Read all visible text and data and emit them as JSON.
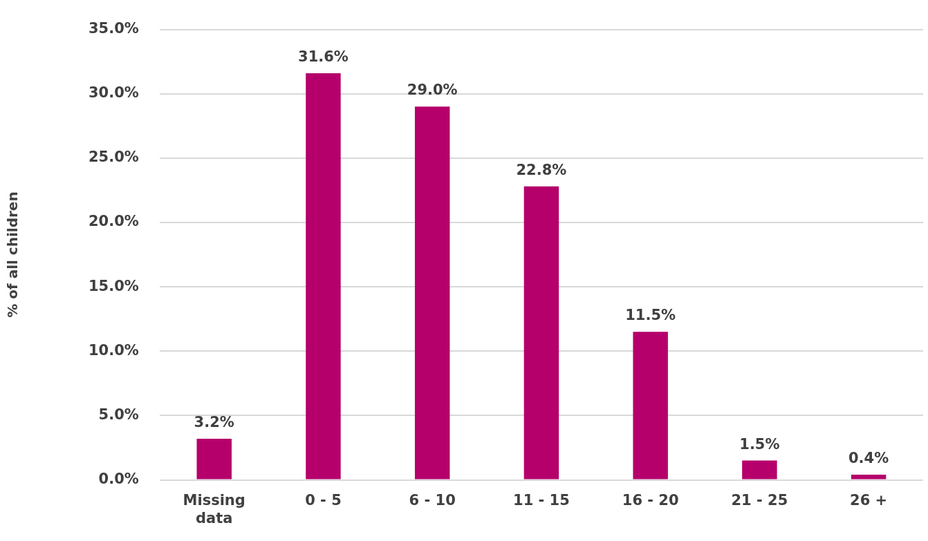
{
  "chart_data": {
    "type": "bar",
    "ylabel": "% of all children",
    "categories": [
      "Missing data",
      "0 - 5",
      "6 - 10",
      "11 - 15",
      "16 - 20",
      "21 - 25",
      "26 +"
    ],
    "values": [
      3.2,
      31.6,
      29.0,
      22.8,
      11.5,
      1.5,
      0.4
    ],
    "value_labels": [
      "3.2%",
      "31.6%",
      "29.0%",
      "22.8%",
      "11.5%",
      "1.5%",
      "0.4%"
    ],
    "color": "#b5006b",
    "ylim": [
      0,
      35
    ],
    "yticks": [
      {
        "value": 0,
        "label": "0.0%"
      },
      {
        "value": 5,
        "label": "5.0%"
      },
      {
        "value": 10,
        "label": "10.0%"
      },
      {
        "value": 15,
        "label": "15.0%"
      },
      {
        "value": 20,
        "label": "20.0%"
      },
      {
        "value": 25,
        "label": "25.0%"
      },
      {
        "value": 30,
        "label": "30.0%"
      },
      {
        "value": 35,
        "label": "35.0%"
      }
    ],
    "grid": "y"
  }
}
